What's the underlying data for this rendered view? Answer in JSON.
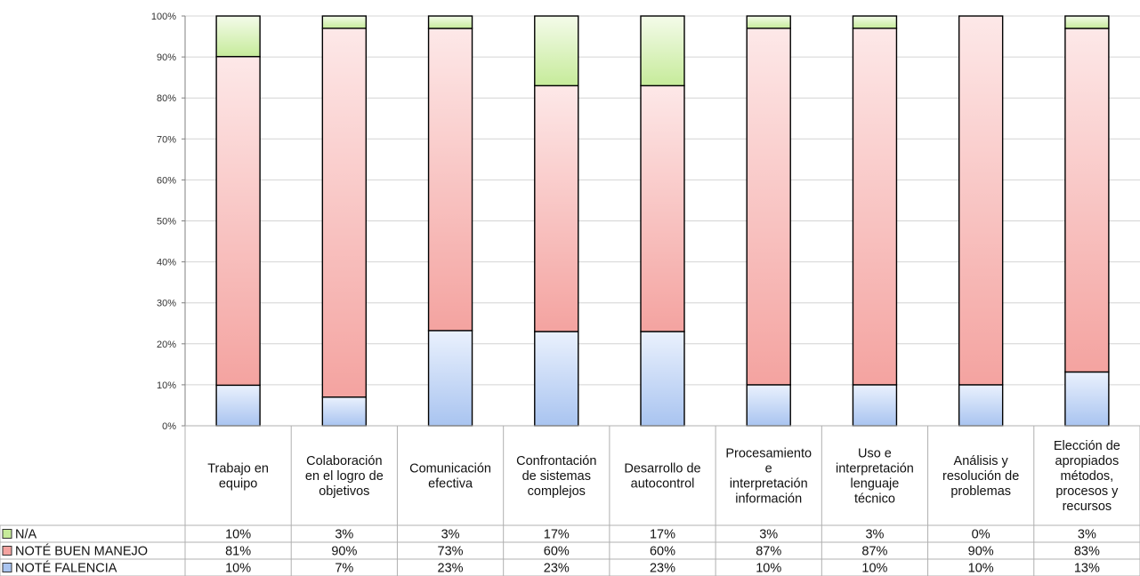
{
  "chart_data": {
    "type": "bar",
    "stacked": true,
    "percent_stacked": true,
    "grid": true,
    "legend": "left-of-data-table",
    "ylim": [
      0,
      100
    ],
    "y_ticks": [
      "0%",
      "10%",
      "20%",
      "30%",
      "40%",
      "50%",
      "60%",
      "70%",
      "80%",
      "90%",
      "100%"
    ],
    "categories": [
      [
        "Trabajo en",
        "equipo"
      ],
      [
        "Colaboración",
        "en el logro de",
        "objetivos"
      ],
      [
        "Comunicación",
        "efectiva"
      ],
      [
        "Confrontación",
        "de sistemas",
        "complejos"
      ],
      [
        "Desarrollo de",
        "autocontrol"
      ],
      [
        "Procesamiento",
        "e",
        "interpretación",
        "información"
      ],
      [
        "Uso e",
        "interpretación",
        "lenguaje",
        "técnico"
      ],
      [
        "Análisis y",
        "resolución de",
        "problemas"
      ],
      [
        "Elección de",
        "apropiados",
        "métodos,",
        "procesos y",
        "recursos"
      ]
    ],
    "series": [
      {
        "name": "N/A",
        "color": "#c6eb9a",
        "values": [
          10,
          3,
          3,
          17,
          17,
          3,
          3,
          0,
          3
        ],
        "labels": [
          "10%",
          "3%",
          "3%",
          "17%",
          "17%",
          "3%",
          "3%",
          "0%",
          "3%"
        ]
      },
      {
        "name": "NOTÉ BUEN MANEJO",
        "color": "#f4a3a0",
        "values": [
          81,
          90,
          73,
          60,
          60,
          87,
          87,
          90,
          83
        ],
        "labels": [
          "81%",
          "90%",
          "73%",
          "60%",
          "60%",
          "87%",
          "87%",
          "90%",
          "83%"
        ]
      },
      {
        "name": "NOTÉ FALENCIA",
        "color": "#a9c4f0",
        "values": [
          10,
          7,
          23,
          23,
          23,
          10,
          10,
          10,
          13
        ],
        "labels": [
          "10%",
          "7%",
          "23%",
          "23%",
          "23%",
          "10%",
          "10%",
          "10%",
          "13%"
        ]
      }
    ]
  }
}
